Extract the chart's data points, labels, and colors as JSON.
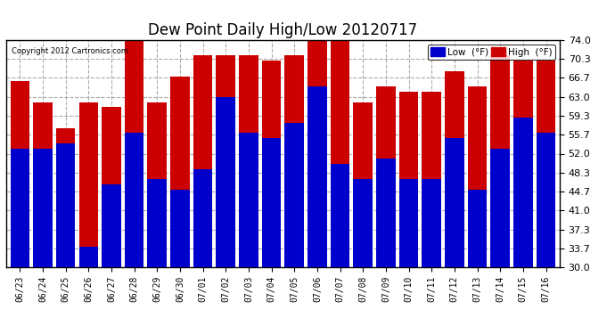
{
  "title": "Dew Point Daily High/Low 20120717",
  "copyright": "Copyright 2012 Cartronics.com",
  "dates": [
    "06/23",
    "06/24",
    "06/25",
    "06/26",
    "06/27",
    "06/28",
    "06/29",
    "06/30",
    "07/01",
    "07/02",
    "07/03",
    "07/04",
    "07/05",
    "07/06",
    "07/07",
    "07/08",
    "07/09",
    "07/10",
    "07/11",
    "07/12",
    "07/13",
    "07/14",
    "07/15",
    "07/16"
  ],
  "low": [
    53,
    53,
    54,
    34,
    46,
    56,
    47,
    45,
    49,
    63,
    56,
    55,
    58,
    65,
    50,
    47,
    51,
    47,
    47,
    55,
    45,
    53,
    59,
    56
  ],
  "high": [
    66,
    62,
    57,
    62,
    61,
    74,
    62,
    67,
    71,
    71,
    71,
    70,
    71,
    75,
    75,
    62,
    65,
    64,
    64,
    68,
    65,
    71,
    70,
    70
  ],
  "low_color": "#0000cc",
  "high_color": "#cc0000",
  "bg_color": "#ffffff",
  "plot_bg_color": "#ffffff",
  "grid_color": "#aaaaaa",
  "ymin": 30.0,
  "ymax": 74.0,
  "yticks": [
    30.0,
    33.7,
    37.3,
    41.0,
    44.7,
    48.3,
    52.0,
    55.7,
    59.3,
    63.0,
    66.7,
    70.3,
    74.0
  ],
  "legend_low_label": "Low  (°F)",
  "legend_high_label": "High  (°F)",
  "title_fontsize": 12,
  "tick_fontsize": 8,
  "bar_width": 0.42
}
